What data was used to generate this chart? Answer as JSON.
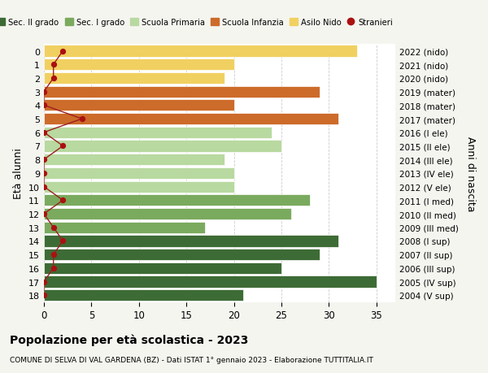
{
  "ages": [
    18,
    17,
    16,
    15,
    14,
    13,
    12,
    11,
    10,
    9,
    8,
    7,
    6,
    5,
    4,
    3,
    2,
    1,
    0
  ],
  "years": [
    "2004 (V sup)",
    "2005 (IV sup)",
    "2006 (III sup)",
    "2007 (II sup)",
    "2008 (I sup)",
    "2009 (III med)",
    "2010 (II med)",
    "2011 (I med)",
    "2012 (V ele)",
    "2013 (IV ele)",
    "2014 (III ele)",
    "2015 (II ele)",
    "2016 (I ele)",
    "2017 (mater)",
    "2018 (mater)",
    "2019 (mater)",
    "2020 (nido)",
    "2021 (nido)",
    "2022 (nido)"
  ],
  "values": [
    21,
    35,
    25,
    29,
    31,
    17,
    26,
    28,
    20,
    20,
    19,
    25,
    24,
    31,
    20,
    29,
    19,
    20,
    33
  ],
  "bar_colors": [
    "#3d6b35",
    "#3d6b35",
    "#3d6b35",
    "#3d6b35",
    "#3d6b35",
    "#7aaa5e",
    "#7aaa5e",
    "#7aaa5e",
    "#b8d9a0",
    "#b8d9a0",
    "#b8d9a0",
    "#b8d9a0",
    "#b8d9a0",
    "#cc6b2a",
    "#cc6b2a",
    "#cc6b2a",
    "#f0d060",
    "#f0d060",
    "#f0d060"
  ],
  "stranieri": [
    0,
    0,
    1,
    1,
    2,
    1,
    0,
    2,
    0,
    0,
    0,
    2,
    0,
    4,
    0,
    0,
    1,
    1,
    2
  ],
  "stranieri_color": "#aa1111",
  "stranieri_line_color": "#9b2020",
  "legend_labels": [
    "Sec. II grado",
    "Sec. I grado",
    "Scuola Primaria",
    "Scuola Infanzia",
    "Asilo Nido",
    "Stranieri"
  ],
  "legend_colors": [
    "#3d6b35",
    "#7aaa5e",
    "#b8d9a0",
    "#cc6b2a",
    "#f0d060",
    "#aa1111"
  ],
  "ylabel_left": "Età alunni",
  "ylabel_right": "Anni di nascita",
  "title": "Popolazione per età scolastica - 2023",
  "subtitle": "COMUNE DI SELVA DI VAL GARDENA (BZ) - Dati ISTAT 1° gennaio 2023 - Elaborazione TUTTITALIA.IT",
  "xlim": [
    0,
    37
  ],
  "xticks": [
    0,
    5,
    10,
    15,
    20,
    25,
    30,
    35
  ],
  "bg_color": "#f5f5f0",
  "plot_bg_color": "#ffffff"
}
